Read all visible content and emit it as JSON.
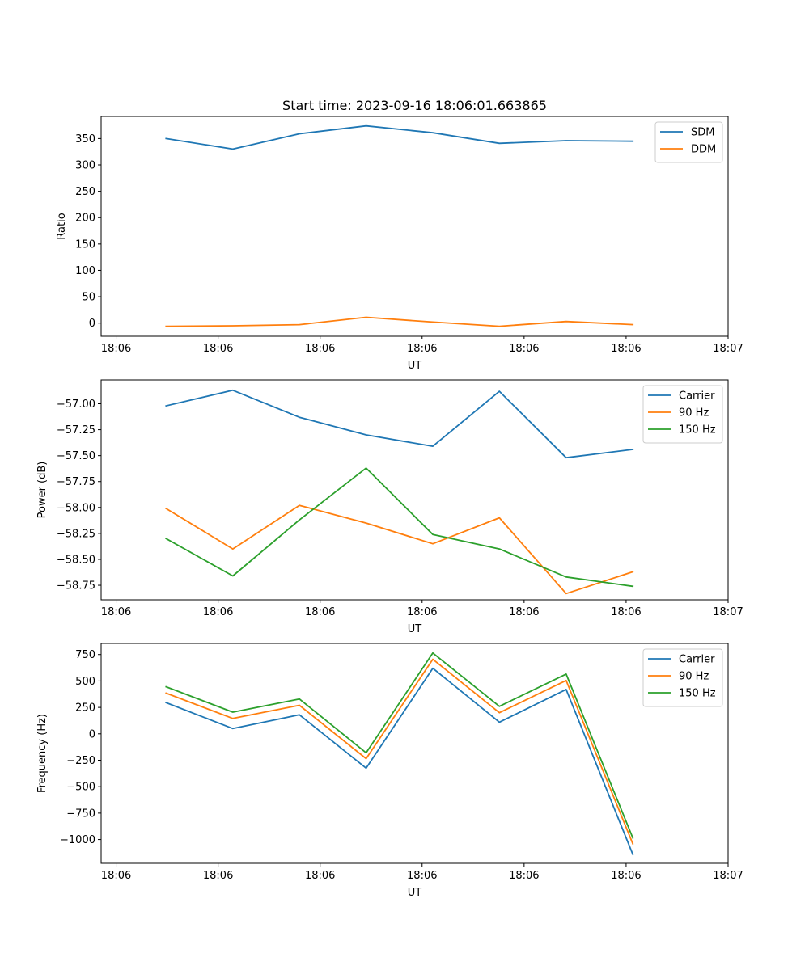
{
  "chart_data": [
    {
      "type": "line",
      "title": "Start time: 2023-09-16 18:06:01.663865",
      "xlabel": "UT",
      "ylabel": "Ratio",
      "x": [
        0.5,
        1.167,
        1.833,
        2.5,
        3.167,
        3.833,
        4.5,
        5.167
      ],
      "xlim": [
        -0.15,
        6.12
      ],
      "xticks": [
        0,
        1.02,
        2.04,
        3.06,
        4.08,
        5.1,
        6.12
      ],
      "xtick_labels": [
        "18:06",
        "18:06",
        "18:06",
        "18:06",
        "18:06",
        "18:06",
        "18:07"
      ],
      "ylim": [
        -25,
        392
      ],
      "yticks": [
        0,
        50,
        100,
        150,
        200,
        250,
        300,
        350
      ],
      "ytick_labels": [
        "0",
        "50",
        "100",
        "150",
        "200",
        "250",
        "300",
        "350"
      ],
      "legend_position": "top-right",
      "series": [
        {
          "name": "SDM",
          "color": "#1f77b4",
          "values": [
            350,
            330,
            359,
            374,
            361,
            341,
            346,
            345
          ]
        },
        {
          "name": "DDM",
          "color": "#ff7f0e",
          "values": [
            -6,
            -5,
            -3,
            11,
            2,
            -6,
            3,
            -3
          ]
        }
      ]
    },
    {
      "type": "line",
      "title": "",
      "xlabel": "UT",
      "ylabel": "Power (dB)",
      "x": [
        0.5,
        1.167,
        1.833,
        2.5,
        3.167,
        3.833,
        4.5,
        5.167
      ],
      "xlim": [
        -0.15,
        6.12
      ],
      "xticks": [
        0,
        1.02,
        2.04,
        3.06,
        4.08,
        5.1,
        6.12
      ],
      "xtick_labels": [
        "18:06",
        "18:06",
        "18:06",
        "18:06",
        "18:06",
        "18:06",
        "18:07"
      ],
      "ylim": [
        -58.89,
        -56.77
      ],
      "yticks": [
        -58.75,
        -58.5,
        -58.25,
        -58.0,
        -57.75,
        -57.5,
        -57.25,
        -57.0
      ],
      "ytick_labels": [
        "−58.75",
        "−58.50",
        "−58.25",
        "−58.00",
        "−57.75",
        "−57.50",
        "−57.25",
        "−57.00"
      ],
      "legend_position": "top-right",
      "series": [
        {
          "name": "Carrier",
          "color": "#1f77b4",
          "values": [
            -57.02,
            -56.87,
            -57.13,
            -57.3,
            -57.41,
            -56.88,
            -57.52,
            -57.44
          ]
        },
        {
          "name": "90 Hz",
          "color": "#ff7f0e",
          "values": [
            -58.01,
            -58.4,
            -57.98,
            -58.15,
            -58.35,
            -58.1,
            -58.83,
            -58.62
          ]
        },
        {
          "name": "150 Hz",
          "color": "#2ca02c",
          "values": [
            -58.3,
            -58.66,
            -58.12,
            -57.62,
            -58.26,
            -58.4,
            -58.67,
            -58.76
          ]
        }
      ]
    },
    {
      "type": "line",
      "title": "",
      "xlabel": "UT",
      "ylabel": "Frequency (Hz)",
      "x": [
        0.5,
        1.167,
        1.833,
        2.5,
        3.167,
        3.833,
        4.5,
        5.167
      ],
      "xlim": [
        -0.15,
        6.12
      ],
      "xticks": [
        0,
        1.02,
        2.04,
        3.06,
        4.08,
        5.1,
        6.12
      ],
      "xtick_labels": [
        "18:06",
        "18:06",
        "18:06",
        "18:06",
        "18:06",
        "18:06",
        "18:07"
      ],
      "ylim": [
        -1225,
        855
      ],
      "yticks": [
        -1000,
        -750,
        -500,
        -250,
        0,
        250,
        500,
        750
      ],
      "ytick_labels": [
        "−1000",
        "−750",
        "−500",
        "−250",
        "0",
        "250",
        "500",
        "750"
      ],
      "legend_position": "top-right",
      "series": [
        {
          "name": "Carrier",
          "color": "#1f77b4",
          "values": [
            295,
            50,
            180,
            -325,
            620,
            110,
            420,
            -1140
          ]
        },
        {
          "name": "90 Hz",
          "color": "#ff7f0e",
          "values": [
            385,
            145,
            270,
            -235,
            705,
            200,
            505,
            -1040
          ]
        },
        {
          "name": "150 Hz",
          "color": "#2ca02c",
          "values": [
            445,
            205,
            330,
            -180,
            765,
            260,
            565,
            -985
          ]
        }
      ]
    }
  ]
}
